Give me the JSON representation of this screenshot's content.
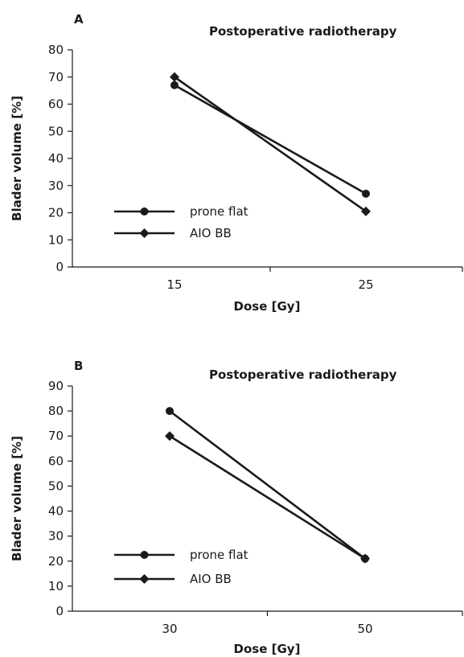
{
  "chart_data": [
    {
      "type": "line",
      "panel": "A",
      "title": "Postoperative radiotherapy",
      "xlabel": "Dose [Gy]",
      "ylabel": "Blader volume [%]",
      "x": [
        15,
        25
      ],
      "x_ticks": [
        "15",
        "25"
      ],
      "ylim": [
        0,
        80
      ],
      "y_ticks": [
        0,
        10,
        20,
        30,
        40,
        50,
        60,
        70,
        80
      ],
      "grid": false,
      "legend_position": "bottom-left",
      "series": [
        {
          "name": "prone flat",
          "marker": "circle",
          "values": [
            67,
            27
          ]
        },
        {
          "name": "AIO BB",
          "marker": "diamond",
          "values": [
            70,
            20.5
          ]
        }
      ]
    },
    {
      "type": "line",
      "panel": "B",
      "title": "Postoperative radiotherapy",
      "xlabel": "Dose [Gy]",
      "ylabel": "Blader volume [%]",
      "x": [
        30,
        50
      ],
      "x_ticks": [
        "30",
        "50"
      ],
      "ylim": [
        0,
        90
      ],
      "y_ticks": [
        0,
        10,
        20,
        30,
        40,
        50,
        60,
        70,
        80,
        90
      ],
      "grid": false,
      "legend_position": "bottom-left",
      "series": [
        {
          "name": "prone flat",
          "marker": "circle",
          "values": [
            80,
            21
          ]
        },
        {
          "name": "AIO BB",
          "marker": "diamond",
          "values": [
            70,
            21
          ]
        }
      ]
    }
  ]
}
